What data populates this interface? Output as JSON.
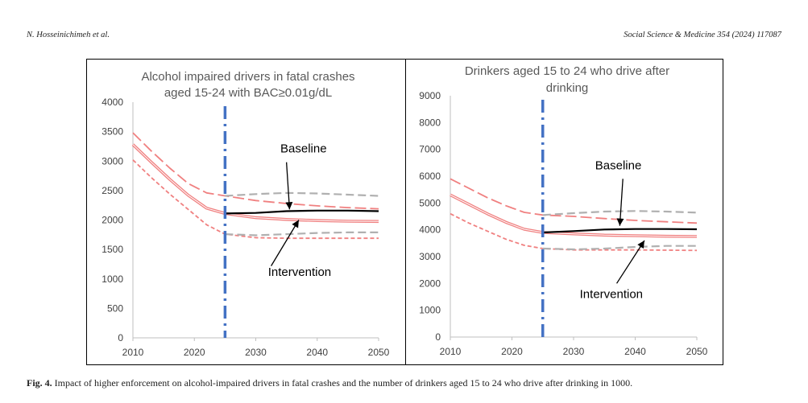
{
  "header": {
    "left": "N. Hosseinichimeh et al.",
    "right": "Social Science & Medicine 354 (2024) 117087"
  },
  "caption": {
    "label": "Fig. 4.",
    "text": " Impact of higher enforcement on alcohol-impaired drivers in fatal crashes and the number of drinkers aged 15 to 24 who drive after drinking in 1000."
  },
  "colors": {
    "red": "#f08080",
    "gray": "#b0b0b0",
    "black": "#000000",
    "vline": "#4472c4"
  },
  "chart_data": [
    {
      "type": "line",
      "title_lines": [
        "Alcohol impaired drivers in fatal crashes",
        "aged 15-24 with BAC≥0.01g/dL"
      ],
      "xlim": [
        2010,
        2050
      ],
      "ylim": [
        0,
        4000
      ],
      "xticks": [
        2010,
        2020,
        2030,
        2040,
        2050
      ],
      "yticks": [
        0,
        500,
        1000,
        1500,
        2000,
        2500,
        3000,
        3500,
        4000
      ],
      "vline_x": 2025,
      "annotations": [
        {
          "text": "Baseline",
          "x": 2034,
          "y": 3150,
          "arrow_from": [
            2035,
            2980
          ],
          "arrow_to": [
            2035.5,
            2180
          ]
        },
        {
          "text": "Intervention",
          "x": 2032,
          "y": 1050,
          "arrow_from": [
            2032.5,
            1220
          ],
          "arrow_to": [
            2037,
            2000
          ]
        }
      ],
      "series": [
        {
          "role": "intervention",
          "style": "red-solid",
          "x": [
            2010,
            2013,
            2016,
            2019,
            2022,
            2025,
            2030,
            2035,
            2040,
            2045,
            2050
          ],
          "y": [
            3280,
            2980,
            2690,
            2420,
            2200,
            2110,
            2040,
            2010,
            1990,
            1980,
            1975
          ]
        },
        {
          "role": "intervention-upper",
          "style": "red-longdash",
          "x": [
            2010,
            2013,
            2016,
            2019,
            2022,
            2025,
            2030,
            2035,
            2040,
            2045,
            2050
          ],
          "y": [
            3480,
            3170,
            2880,
            2620,
            2460,
            2410,
            2330,
            2280,
            2240,
            2210,
            2190
          ]
        },
        {
          "role": "intervention-lower",
          "style": "red-shortdash",
          "x": [
            2010,
            2013,
            2016,
            2019,
            2022,
            2025,
            2030,
            2035,
            2040,
            2045,
            2050
          ],
          "y": [
            3020,
            2720,
            2440,
            2180,
            1920,
            1760,
            1700,
            1690,
            1690,
            1690,
            1690
          ]
        },
        {
          "role": "baseline",
          "style": "black-solid",
          "x": [
            2025,
            2030,
            2035,
            2040,
            2045,
            2050
          ],
          "y": [
            2110,
            2120,
            2150,
            2160,
            2160,
            2150
          ]
        },
        {
          "role": "baseline-upper",
          "style": "gray-dash",
          "x": [
            2025,
            2030,
            2035,
            2040,
            2045,
            2050
          ],
          "y": [
            2410,
            2440,
            2460,
            2450,
            2430,
            2410
          ]
        },
        {
          "role": "baseline-lower",
          "style": "gray-dash",
          "x": [
            2025,
            2030,
            2035,
            2040,
            2045,
            2050
          ],
          "y": [
            1760,
            1740,
            1760,
            1780,
            1790,
            1790
          ]
        }
      ]
    },
    {
      "type": "line",
      "title_lines": [
        "Drinkers aged 15 to 24 who drive after",
        "drinking"
      ],
      "xlim": [
        2010,
        2050
      ],
      "ylim": [
        0,
        9000
      ],
      "xticks": [
        2010,
        2020,
        2030,
        2040,
        2050
      ],
      "yticks": [
        0,
        1000,
        2000,
        3000,
        4000,
        5000,
        6000,
        7000,
        8000,
        9000
      ],
      "vline_x": 2025,
      "annotations": [
        {
          "text": "Baseline",
          "x": 2033.5,
          "y": 6250,
          "arrow_from": [
            2038,
            5900
          ],
          "arrow_to": [
            2037.5,
            4150
          ]
        },
        {
          "text": "Intervention",
          "x": 2031,
          "y": 1450,
          "arrow_from": [
            2037,
            2000
          ],
          "arrow_to": [
            2041.5,
            3600
          ]
        }
      ],
      "series": [
        {
          "role": "intervention",
          "style": "red-solid",
          "x": [
            2010,
            2013,
            2016,
            2019,
            2022,
            2025,
            2030,
            2035,
            2040,
            2045,
            2050
          ],
          "y": [
            5300,
            4950,
            4600,
            4280,
            4020,
            3900,
            3850,
            3800,
            3780,
            3760,
            3750
          ]
        },
        {
          "role": "intervention-upper",
          "style": "red-longdash",
          "x": [
            2010,
            2013,
            2016,
            2019,
            2022,
            2025,
            2030,
            2035,
            2040,
            2045,
            2050
          ],
          "y": [
            5900,
            5550,
            5200,
            4900,
            4650,
            4550,
            4500,
            4420,
            4350,
            4300,
            4250
          ]
        },
        {
          "role": "intervention-lower",
          "style": "red-shortdash",
          "x": [
            2010,
            2013,
            2016,
            2019,
            2022,
            2025,
            2030,
            2035,
            2040,
            2045,
            2050
          ],
          "y": [
            4600,
            4250,
            3950,
            3650,
            3420,
            3300,
            3250,
            3250,
            3250,
            3240,
            3230
          ]
        },
        {
          "role": "baseline",
          "style": "black-solid",
          "x": [
            2025,
            2030,
            2035,
            2040,
            2045,
            2050
          ],
          "y": [
            3900,
            3950,
            4010,
            4030,
            4030,
            4020
          ]
        },
        {
          "role": "baseline-upper",
          "style": "gray-dash",
          "x": [
            2025,
            2030,
            2035,
            2040,
            2045,
            2050
          ],
          "y": [
            4550,
            4620,
            4680,
            4700,
            4680,
            4640
          ]
        },
        {
          "role": "baseline-lower",
          "style": "gray-dash",
          "x": [
            2025,
            2030,
            2035,
            2040,
            2045,
            2050
          ],
          "y": [
            3300,
            3270,
            3300,
            3360,
            3400,
            3400
          ]
        }
      ]
    }
  ]
}
